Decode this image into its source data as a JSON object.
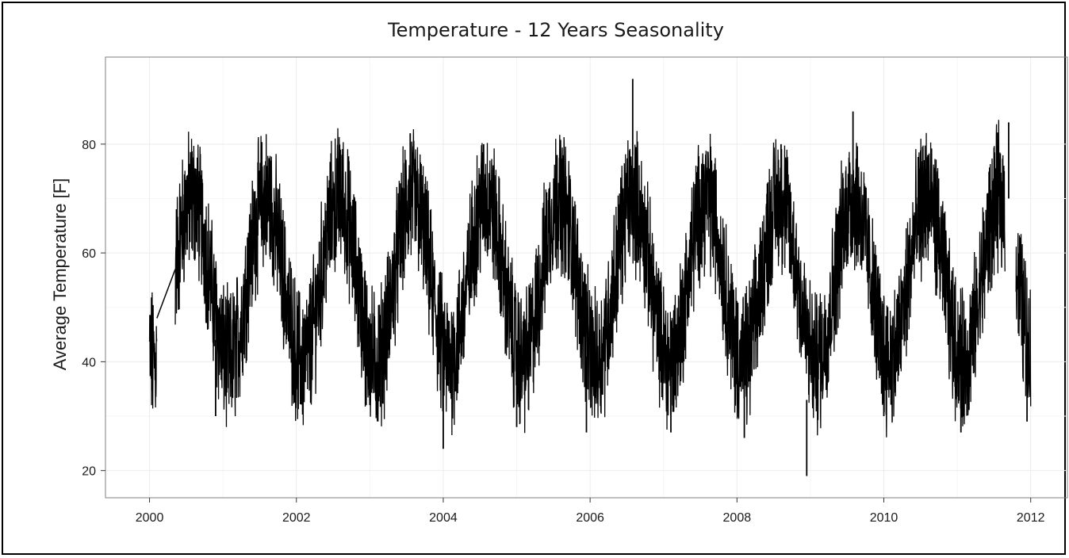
{
  "chart_data": {
    "type": "line",
    "title": "Temperature - 12 Years Seasonality",
    "xlabel": "",
    "ylabel": "Average Temperature [F]",
    "xlim": [
      1999.4,
      2012.5
    ],
    "ylim": [
      15,
      96
    ],
    "x_ticks": [
      2000,
      2002,
      2004,
      2006,
      2008,
      2010,
      2012
    ],
    "y_ticks": [
      20,
      40,
      60,
      80
    ],
    "grid": true,
    "legend": "none",
    "colors": {
      "line": "#000000",
      "grid": "#ececec",
      "panel_border": "#7f7f7f"
    },
    "series_summary": {
      "sampling": "daily",
      "x_start": 2000.0,
      "x_end": 2012.0,
      "annual_peaks": [
        {
          "x": 2000.55,
          "y": 76
        },
        {
          "x": 2001.6,
          "y": 76
        },
        {
          "x": 2002.6,
          "y": 79
        },
        {
          "x": 2003.55,
          "y": 82
        },
        {
          "x": 2004.55,
          "y": 80
        },
        {
          "x": 2005.55,
          "y": 78
        },
        {
          "x": 2006.58,
          "y": 92
        },
        {
          "x": 2007.55,
          "y": 76
        },
        {
          "x": 2008.6,
          "y": 80
        },
        {
          "x": 2009.58,
          "y": 86
        },
        {
          "x": 2010.6,
          "y": 78
        },
        {
          "x": 2011.7,
          "y": 84
        }
      ],
      "annual_troughs": [
        {
          "x": 2000.9,
          "y": 30
        },
        {
          "x": 2002.1,
          "y": 34
        },
        {
          "x": 2002.95,
          "y": 32
        },
        {
          "x": 2004.0,
          "y": 24
        },
        {
          "x": 2005.0,
          "y": 28
        },
        {
          "x": 2005.95,
          "y": 27
        },
        {
          "x": 2007.1,
          "y": 27
        },
        {
          "x": 2008.1,
          "y": 26
        },
        {
          "x": 2008.95,
          "y": 19
        },
        {
          "x": 2010.0,
          "y": 30
        },
        {
          "x": 2011.05,
          "y": 27
        },
        {
          "x": 2011.95,
          "y": 29
        }
      ],
      "gaps": [
        [
          2000.1,
          2000.35
        ],
        [
          2011.65,
          2011.8
        ]
      ]
    }
  }
}
